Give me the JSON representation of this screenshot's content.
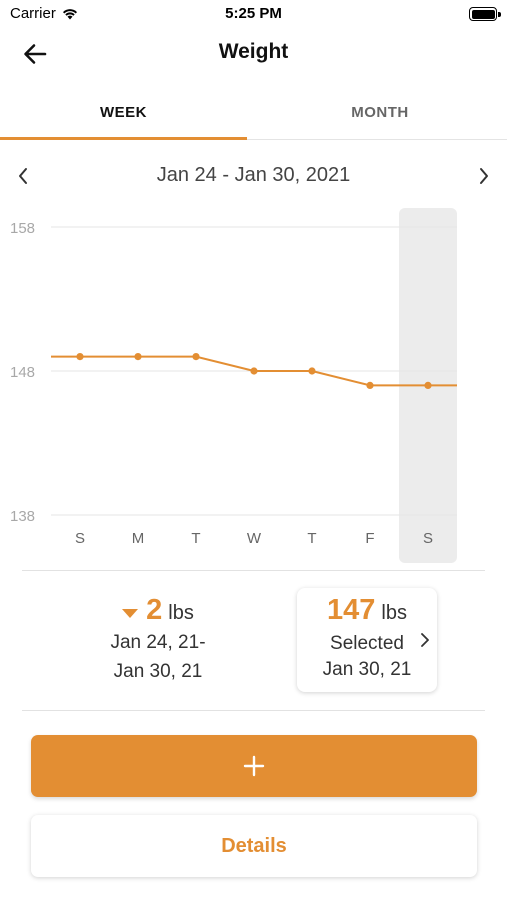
{
  "status_bar": {
    "carrier": "Carrier",
    "time": "5:25 PM",
    "icons": [
      "wifi-icon",
      "battery-icon"
    ]
  },
  "nav": {
    "title": "Weight",
    "back_icon": "arrow-left-icon"
  },
  "tabs": [
    {
      "label": "WEEK",
      "selected": true
    },
    {
      "label": "MONTH",
      "selected": false
    }
  ],
  "date_range": {
    "label": "Jan 24 - Jan 30, 2021",
    "prev_icon": "chevron-left-icon",
    "next_icon": "chevron-right-icon"
  },
  "chart_data": {
    "type": "line",
    "categories": [
      "S",
      "M",
      "T",
      "W",
      "T",
      "F",
      "S"
    ],
    "series": [
      {
        "values": [
          149,
          149,
          149,
          148,
          148,
          147,
          147
        ]
      }
    ],
    "y_ticks": [
      "158",
      "148",
      "138"
    ],
    "ylim": [
      138,
      158
    ],
    "selected_index": 6,
    "grid": true,
    "line_color": "#e38e33",
    "highlight_color": "#ececec"
  },
  "summary": {
    "change_value": "2",
    "change_unit": "lbs",
    "change_direction": "down",
    "change_range_line1": "Jan 24, 21-",
    "change_range_line2": "Jan 30, 21",
    "selected_value": "147",
    "selected_unit": "lbs",
    "selected_label": "Selected",
    "selected_date": "Jan 30, 21"
  },
  "actions": {
    "add_icon": "plus-icon",
    "details_label": "Details"
  },
  "colors": {
    "accent": "#e38e33",
    "text": "#111111",
    "muted": "#666666"
  }
}
